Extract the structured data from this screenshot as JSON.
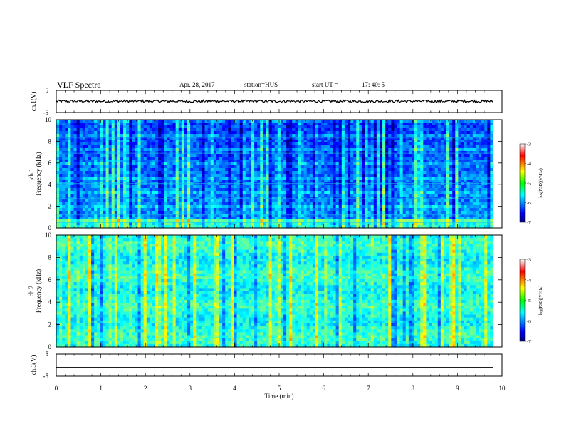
{
  "header": {
    "title": "VLF Spectra",
    "date": "Apr. 28, 2017",
    "station": "station=HUS",
    "start_label": "start UT =",
    "start_time": "17: 40: 5"
  },
  "chart_data": [
    {
      "type": "line",
      "name": "ch1-waveform",
      "ylabel": "ch.1(V)",
      "y_ticks": [
        "5",
        "-5"
      ],
      "ylim": [
        -5,
        5
      ],
      "xlim": [
        0,
        10
      ],
      "level": 0.1,
      "x_end": 9.8
    },
    {
      "type": "heatmap",
      "name": "ch1-spectrogram",
      "ylabel_top": "ch.1",
      "ylabel": "Frequency (kHz)",
      "y_ticks": [
        "0",
        "2",
        "4",
        "6",
        "8",
        "10"
      ],
      "ylim": [
        0,
        10
      ],
      "xlim": [
        0,
        10
      ],
      "x_end": 9.8,
      "colorbar": {
        "label": "log(PSD)(V²/Hz)",
        "ticks": [
          "-3",
          "-4",
          "-5",
          "-6",
          "-7"
        ],
        "range": [
          -7,
          -3
        ]
      }
    },
    {
      "type": "heatmap",
      "name": "ch2-spectrogram",
      "ylabel_top": "ch.2",
      "ylabel": "Frequency (kHz)",
      "y_ticks": [
        "0",
        "2",
        "4",
        "6",
        "8",
        "10"
      ],
      "ylim": [
        0,
        10
      ],
      "xlim": [
        0,
        10
      ],
      "x_end": 9.8,
      "colorbar": {
        "label": "log(PSD)(V²/Hz)",
        "ticks": [
          "-3",
          "-4",
          "-5",
          "-6",
          "-7"
        ],
        "range": [
          -7,
          -3
        ]
      }
    },
    {
      "type": "line",
      "name": "ch3-waveform",
      "ylabel": "ch.3(V)",
      "y_ticks": [
        "5",
        "-5"
      ],
      "ylim": [
        -5,
        5
      ],
      "xlim": [
        0,
        10
      ],
      "level": -1.0,
      "x_end": 9.8
    }
  ],
  "x_axis": {
    "label": "Time (min)",
    "ticks": [
      "0",
      "1",
      "2",
      "3",
      "4",
      "5",
      "6",
      "7",
      "8",
      "9",
      "10"
    ]
  }
}
